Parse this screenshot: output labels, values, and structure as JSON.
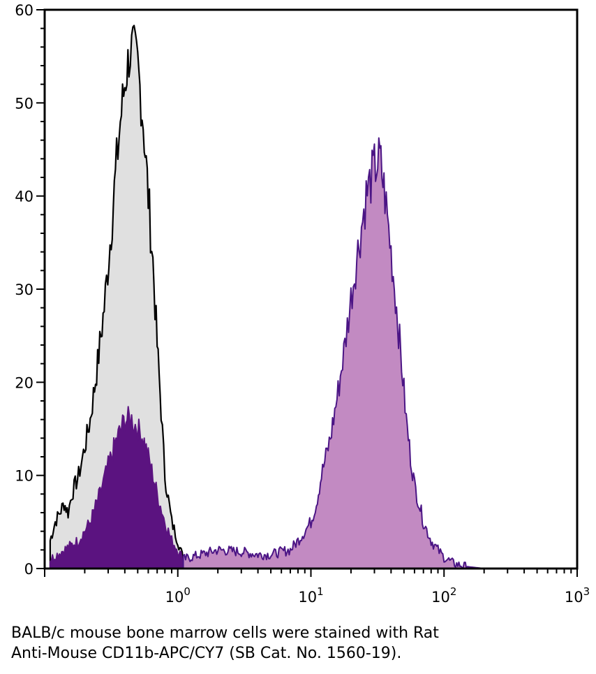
{
  "chart_data": {
    "type": "area",
    "title": "",
    "xlabel": "",
    "ylabel": "",
    "x_scale": "log",
    "xlim": [
      0.1,
      1000
    ],
    "ylim": [
      0,
      60
    ],
    "grid": false,
    "x_ticks": [
      {
        "value": 1,
        "base": "10",
        "exp": "0"
      },
      {
        "value": 10,
        "base": "10",
        "exp": "1"
      },
      {
        "value": 100,
        "base": "10",
        "exp": "2"
      },
      {
        "value": 1000,
        "base": "10",
        "exp": "3"
      }
    ],
    "y_ticks": [
      0,
      10,
      20,
      30,
      40,
      50,
      60
    ],
    "series": [
      {
        "style": "unstained-control",
        "fill": "#e0e0e0",
        "stroke": "#000000",
        "points": [
          [
            0.11,
            3
          ],
          [
            0.12,
            5
          ],
          [
            0.13,
            6
          ],
          [
            0.14,
            7
          ],
          [
            0.15,
            6
          ],
          [
            0.16,
            8
          ],
          [
            0.18,
            10
          ],
          [
            0.2,
            13
          ],
          [
            0.22,
            16
          ],
          [
            0.25,
            22
          ],
          [
            0.28,
            28
          ],
          [
            0.31,
            35
          ],
          [
            0.34,
            42
          ],
          [
            0.37,
            48
          ],
          [
            0.4,
            52
          ],
          [
            0.43,
            55
          ],
          [
            0.46,
            56
          ],
          [
            0.5,
            54
          ],
          [
            0.55,
            48
          ],
          [
            0.6,
            40
          ],
          [
            0.65,
            33
          ],
          [
            0.7,
            24
          ],
          [
            0.75,
            17
          ],
          [
            0.8,
            10
          ],
          [
            0.9,
            5
          ],
          [
            1.0,
            3
          ],
          [
            1.1,
            1
          ],
          [
            1.2,
            0.3
          ],
          [
            1.3,
            0
          ]
        ]
      },
      {
        "style": "stained-population-low",
        "fill": "#5b1380",
        "stroke": "#5b1380",
        "points": [
          [
            0.11,
            1
          ],
          [
            0.14,
            2
          ],
          [
            0.18,
            3
          ],
          [
            0.22,
            5
          ],
          [
            0.26,
            8
          ],
          [
            0.3,
            11
          ],
          [
            0.35,
            14
          ],
          [
            0.4,
            16
          ],
          [
            0.45,
            16
          ],
          [
            0.5,
            15
          ],
          [
            0.55,
            14
          ],
          [
            0.6,
            12
          ],
          [
            0.65,
            10
          ],
          [
            0.7,
            8
          ],
          [
            0.8,
            5
          ],
          [
            0.9,
            3
          ],
          [
            1.0,
            2
          ],
          [
            1.1,
            1
          ],
          [
            1.3,
            0
          ]
        ]
      },
      {
        "style": "stained-population-high",
        "fill": "#c28ac2",
        "stroke": "#4b1585",
        "points": [
          [
            1.1,
            1
          ],
          [
            1.5,
            1.5
          ],
          [
            2,
            2
          ],
          [
            3,
            1.8
          ],
          [
            4,
            1.5
          ],
          [
            5,
            1.5
          ],
          [
            6,
            1.8
          ],
          [
            7,
            2
          ],
          [
            8,
            3
          ],
          [
            9,
            4
          ],
          [
            10,
            5
          ],
          [
            11,
            7
          ],
          [
            12,
            10
          ],
          [
            14,
            14
          ],
          [
            16,
            19
          ],
          [
            18,
            24
          ],
          [
            20,
            29
          ],
          [
            23,
            35
          ],
          [
            26,
            40
          ],
          [
            30,
            43
          ],
          [
            33,
            44
          ],
          [
            36,
            40
          ],
          [
            40,
            34
          ],
          [
            44,
            28
          ],
          [
            48,
            22
          ],
          [
            52,
            16
          ],
          [
            56,
            12
          ],
          [
            60,
            9
          ],
          [
            65,
            7
          ],
          [
            70,
            5
          ],
          [
            80,
            3
          ],
          [
            90,
            2
          ],
          [
            100,
            1.2
          ],
          [
            120,
            0.5
          ],
          [
            150,
            0.2
          ],
          [
            200,
            0
          ]
        ]
      }
    ]
  },
  "caption": {
    "line1": "BALB/c mouse bone marrow cells were stained with Rat",
    "line2": "Anti-Mouse CD11b-APC/CY7 (SB Cat. No. 1560-19)."
  }
}
